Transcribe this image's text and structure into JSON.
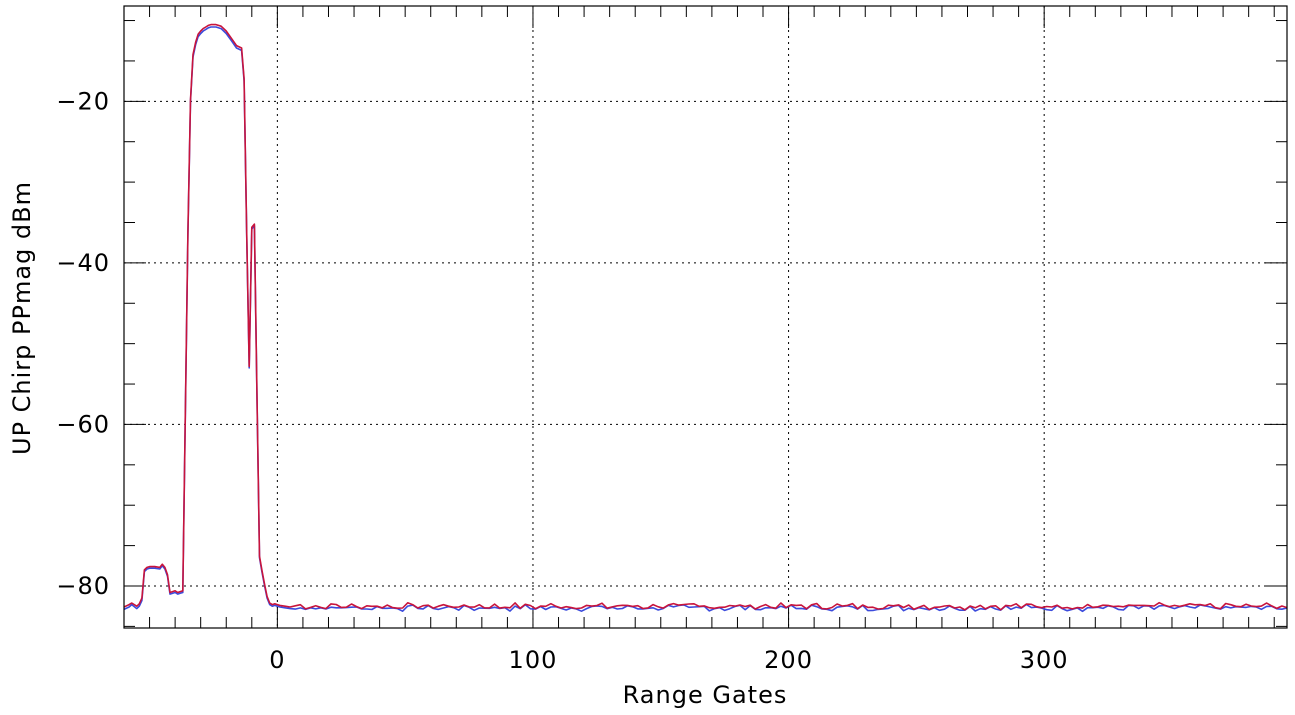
{
  "chart_data": {
    "type": "line",
    "title": "",
    "xlabel": "Range Gates",
    "ylabel": "UP Chirp PPmag dBm",
    "xlim": [
      -60,
      395
    ],
    "ylim": [
      -85.2,
      -8.2
    ],
    "x_ticks": [
      0,
      100,
      200,
      300
    ],
    "x_tick_labels": [
      "0",
      "100",
      "200",
      "300"
    ],
    "y_ticks": [
      -20,
      -40,
      -60,
      -80
    ],
    "y_tick_labels": [
      "−20",
      "−40",
      "−60",
      "−80"
    ],
    "x_minor_step": 10,
    "y_minor_step": 5,
    "grid": true,
    "legend": false,
    "series": [
      {
        "color": "#3b4bdc",
        "x": [
          -60,
          -58,
          -57,
          -55,
          -54,
          -53,
          -52,
          -51,
          -50,
          -48,
          -46,
          -45,
          -44,
          -43,
          -42,
          -40,
          -39,
          -38,
          -37,
          -35,
          -34,
          -33,
          -32,
          -31,
          -30,
          -29,
          -28,
          -27,
          -26,
          -25,
          -24,
          -22,
          -20,
          -18,
          -16,
          -14,
          -13,
          -12,
          -11,
          -10,
          -9,
          -8,
          -7,
          -6,
          -5,
          -4,
          -3,
          -2,
          -1,
          0,
          1,
          3,
          5
        ],
        "y": [
          -82.9,
          -82.6,
          -82.3,
          -82.8,
          -82.5,
          -81.8,
          -78.2,
          -77.9,
          -77.8,
          -77.8,
          -77.9,
          -77.5,
          -77.9,
          -78.8,
          -81.0,
          -80.8,
          -81.0,
          -80.9,
          -80.8,
          -36.5,
          -20.0,
          -14.5,
          -13.0,
          -12.0,
          -11.6,
          -11.3,
          -11.1,
          -10.9,
          -10.8,
          -10.8,
          -10.8,
          -11.0,
          -11.6,
          -12.5,
          -13.4,
          -13.7,
          -17.5,
          -36.5,
          -53.0,
          -35.8,
          -35.4,
          -56.0,
          -76.5,
          -78.3,
          -80.0,
          -81.5,
          -82.3,
          -82.5,
          -82.4,
          -82.5,
          -82.6,
          -82.7,
          -82.8
        ]
      },
      {
        "color": "#c8143c",
        "x": [
          -60,
          -58,
          -57,
          -55,
          -54,
          -53,
          -52,
          -51,
          -50,
          -48,
          -46,
          -45,
          -44,
          -43,
          -42,
          -40,
          -39,
          -38,
          -37,
          -35,
          -34,
          -33,
          -32,
          -31,
          -30,
          -29,
          -28,
          -27,
          -26,
          -25,
          -24,
          -22,
          -20,
          -18,
          -16,
          -14,
          -13,
          -12,
          -11,
          -10,
          -9,
          -8,
          -7,
          -6,
          -5,
          -4,
          -3,
          -2,
          -1,
          0,
          1,
          3,
          5
        ],
        "y": [
          -82.6,
          -82.3,
          -82.1,
          -82.5,
          -82.2,
          -81.5,
          -78.0,
          -77.7,
          -77.6,
          -77.6,
          -77.7,
          -77.3,
          -77.7,
          -78.6,
          -80.8,
          -80.6,
          -80.8,
          -80.7,
          -80.6,
          -36.3,
          -19.8,
          -14.2,
          -12.7,
          -11.7,
          -11.3,
          -11.0,
          -10.8,
          -10.6,
          -10.5,
          -10.5,
          -10.5,
          -10.7,
          -11.3,
          -12.2,
          -13.1,
          -13.4,
          -17.2,
          -36.3,
          -52.8,
          -35.6,
          -35.2,
          -55.8,
          -76.3,
          -78.1,
          -79.8,
          -81.3,
          -82.1,
          -82.3,
          -82.2,
          -82.3,
          -82.4,
          -82.5,
          -82.6
        ]
      }
    ],
    "noise_floor": {
      "x_start": 5,
      "x_end": 395,
      "x_step": 2,
      "level": -82.6,
      "spread": 0.3,
      "offset_between_series": 0.2
    }
  }
}
